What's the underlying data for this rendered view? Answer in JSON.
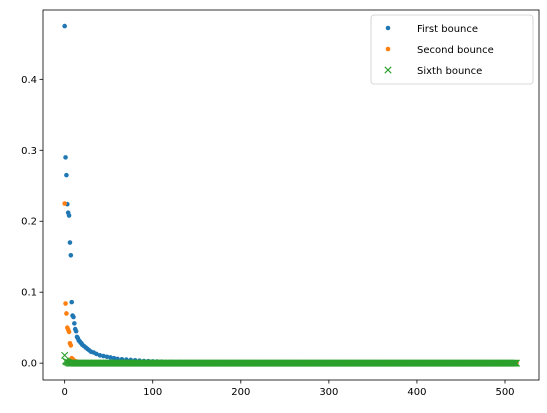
{
  "chart_data": {
    "type": "scatter",
    "title": "",
    "xlabel": "",
    "ylabel": "",
    "xlim": [
      -24.6,
      538.6
    ],
    "ylim": [
      -0.02375,
      0.4977
    ],
    "x_ticks": [
      0,
      100,
      200,
      300,
      400,
      500
    ],
    "y_ticks": [
      0.0,
      0.1,
      0.2,
      0.3,
      0.4
    ],
    "x_tick_labels": [
      "0",
      "100",
      "200",
      "300",
      "400",
      "500"
    ],
    "y_tick_labels": [
      "0.0",
      "0.1",
      "0.2",
      "0.3",
      "0.4"
    ],
    "grid": false,
    "legend_position": "upper-right",
    "x_range": [
      0,
      513
    ],
    "series": [
      {
        "name": "First bounce",
        "marker": "dot",
        "color": "#1f77b4",
        "points": [
          [
            0,
            0.475
          ],
          [
            1,
            0.29
          ],
          [
            2,
            0.265
          ],
          [
            3,
            0.224
          ],
          [
            4,
            0.212
          ],
          [
            5,
            0.208
          ],
          [
            6,
            0.17
          ],
          [
            7,
            0.152
          ],
          [
            8,
            0.086
          ],
          [
            9,
            0.067
          ],
          [
            10,
            0.065
          ],
          [
            11,
            0.056
          ],
          [
            12,
            0.048
          ],
          [
            13,
            0.045
          ],
          [
            14,
            0.037
          ],
          [
            15,
            0.035
          ],
          [
            16,
            0.032
          ],
          [
            17,
            0.031
          ],
          [
            18,
            0.029
          ],
          [
            19,
            0.028
          ],
          [
            20,
            0.026
          ],
          [
            22,
            0.024
          ],
          [
            24,
            0.022
          ],
          [
            26,
            0.02
          ],
          [
            28,
            0.018
          ],
          [
            30,
            0.016
          ],
          [
            33,
            0.015
          ],
          [
            36,
            0.013
          ],
          [
            40,
            0.011
          ],
          [
            44,
            0.01
          ],
          [
            48,
            0.009
          ],
          [
            52,
            0.008
          ],
          [
            56,
            0.007
          ],
          [
            60,
            0.006
          ],
          [
            65,
            0.0055
          ],
          [
            70,
            0.005
          ],
          [
            75,
            0.0045
          ],
          [
            80,
            0.004
          ],
          [
            85,
            0.0035
          ],
          [
            90,
            0.003
          ],
          [
            95,
            0.0028
          ],
          [
            100,
            0.0025
          ],
          [
            105,
            0.0022
          ],
          [
            110,
            0.002
          ],
          [
            120,
            0.0018
          ],
          [
            130,
            0.0015
          ],
          [
            140,
            0.0013
          ],
          [
            150,
            0.0011
          ]
        ],
        "tail_value": 0.0005
      },
      {
        "name": "Second bounce",
        "marker": "dot",
        "color": "#ff7f0e",
        "points": [
          [
            0,
            0.225
          ],
          [
            1,
            0.084
          ],
          [
            2,
            0.07
          ],
          [
            3,
            0.05
          ],
          [
            4,
            0.047
          ],
          [
            5,
            0.044
          ],
          [
            6,
            0.028
          ],
          [
            7,
            0.025
          ],
          [
            8,
            0.007
          ],
          [
            9,
            0.006
          ],
          [
            10,
            0.004
          ],
          [
            12,
            0.003
          ],
          [
            14,
            0.002
          ],
          [
            16,
            0.0015
          ],
          [
            20,
            0.001
          ]
        ],
        "tail_value": 0.0003
      },
      {
        "name": "Sixth bounce",
        "marker": "x",
        "color": "#2ca02c",
        "points": [
          [
            0,
            0.011
          ],
          [
            1,
            0.003
          ],
          [
            2,
            0.002
          ],
          [
            3,
            0.0015
          ],
          [
            4,
            0.001
          ]
        ],
        "tail_value": 0.0
      }
    ]
  }
}
